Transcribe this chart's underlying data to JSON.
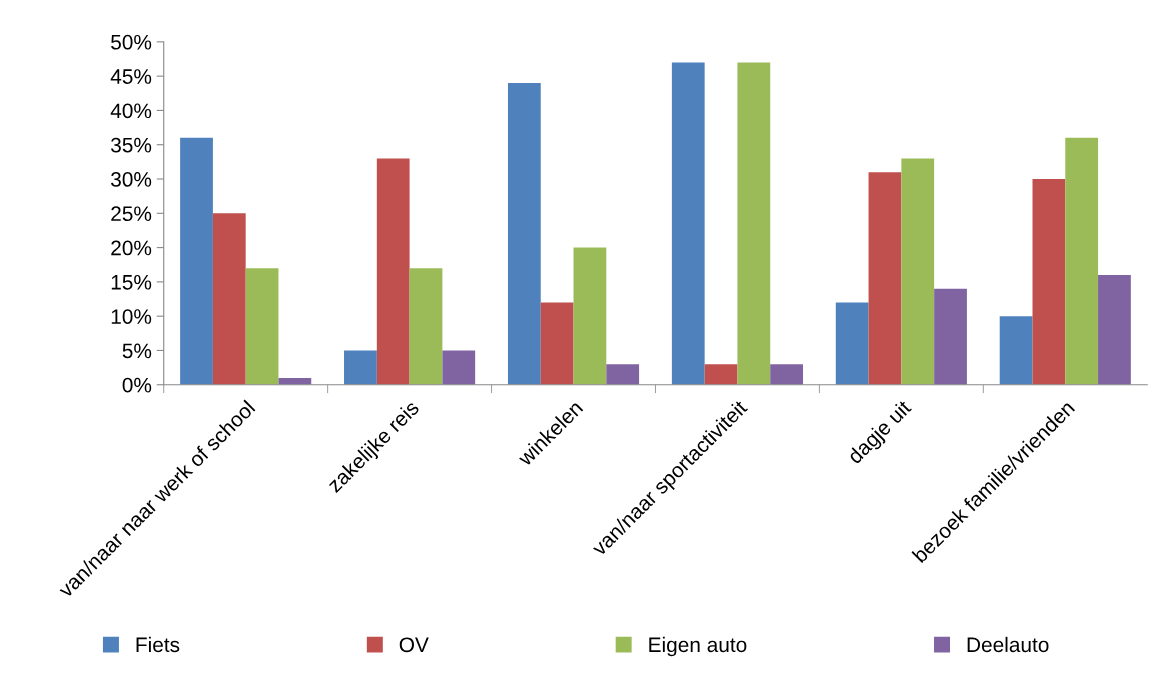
{
  "chart_data": {
    "type": "bar",
    "categories": [
      "van/naar naar werk of school",
      "zakelijke reis",
      "winkelen",
      "van/naar sportactiviteit",
      "dagje uit",
      "bezoek familie/vrienden"
    ],
    "series": [
      {
        "name": "Fiets",
        "color": "#4f81bd",
        "values": [
          36,
          5,
          44,
          47,
          12,
          10
        ]
      },
      {
        "name": "OV",
        "color": "#c0504d",
        "values": [
          25,
          33,
          12,
          3,
          31,
          30
        ]
      },
      {
        "name": "Eigen auto",
        "color": "#9bbb59",
        "values": [
          17,
          17,
          20,
          47,
          33,
          36
        ]
      },
      {
        "name": "Deelauto",
        "color": "#8064a2",
        "values": [
          1,
          5,
          3,
          3,
          14,
          16
        ]
      }
    ],
    "ylim": [
      0,
      50
    ],
    "yticks": [
      {
        "value": 0,
        "label": "0%"
      },
      {
        "value": 5,
        "label": "5%"
      },
      {
        "value": 10,
        "label": "10%"
      },
      {
        "value": 15,
        "label": "15%"
      },
      {
        "value": 20,
        "label": "20%"
      },
      {
        "value": 25,
        "label": "25%"
      },
      {
        "value": 30,
        "label": "30%"
      },
      {
        "value": 35,
        "label": "35%"
      },
      {
        "value": 40,
        "label": "40%"
      },
      {
        "value": 45,
        "label": "45%"
      },
      {
        "value": 50,
        "label": "50%"
      }
    ],
    "grid": false,
    "legend": "bottom"
  }
}
